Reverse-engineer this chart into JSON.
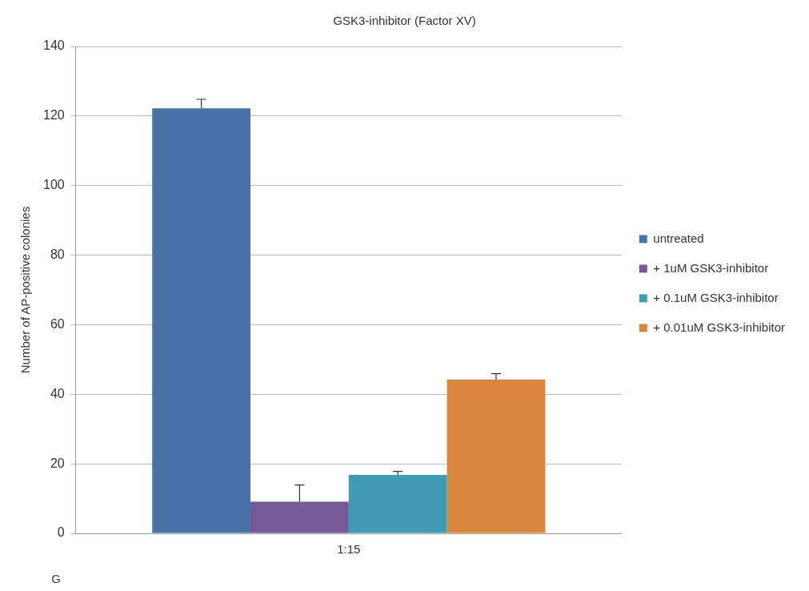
{
  "chart_data": {
    "type": "bar",
    "title": "GSK3-inhibitor (Factor XV)",
    "ylabel": "Number of AP-positive colonies",
    "categories": [
      "1:15"
    ],
    "series": [
      {
        "name": "untreated",
        "color": "#4a72a8",
        "values": [
          122.2
        ],
        "errors": [
          [
            122.2,
            124.8
          ]
        ]
      },
      {
        "name": "+ 1uM GSK3-inhibitor",
        "color": "#765a98",
        "values": [
          9.1
        ],
        "errors": [
          [
            9.1,
            13.9
          ]
        ]
      },
      {
        "name": "+ 0.1uM GSK3-inhibitor",
        "color": "#3f9bb5",
        "values": [
          16.8
        ],
        "errors": [
          [
            16.8,
            17.8
          ]
        ]
      },
      {
        "name": "+ 0.01uM GSK3-inhibitor",
        "color": "#da853d",
        "values": [
          44.2
        ],
        "errors": [
          [
            44.2,
            45.9
          ]
        ]
      }
    ],
    "ylim": [
      0,
      140
    ],
    "yticks": [
      0,
      20,
      40,
      60,
      80,
      100,
      120,
      140
    ],
    "grid": "y",
    "legend": "right",
    "annotations": [
      "G"
    ]
  }
}
